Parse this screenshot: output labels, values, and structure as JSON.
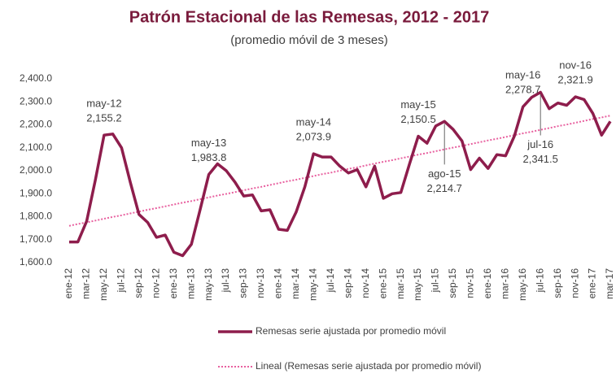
{
  "chart_data": {
    "type": "line",
    "title": "Patrón Estacional de las Remesas, 2012 - 2017",
    "subtitle": "(promedio  móvil de 3 meses)",
    "categories": [
      "ene-12",
      null,
      "mar-12",
      null,
      "may-12",
      null,
      "jul-12",
      null,
      "sep-12",
      null,
      "nov-12",
      null,
      "ene-13",
      null,
      "mar-13",
      null,
      "may-13",
      null,
      "jul-13",
      null,
      "sep-13",
      null,
      "nov-13",
      null,
      "ene-14",
      null,
      "mar-14",
      null,
      "may-14",
      null,
      "jul-14",
      null,
      "sep-14",
      null,
      "nov-14",
      null,
      "ene-15",
      null,
      "mar-15",
      null,
      "may-15",
      null,
      "jul-15",
      null,
      "sep-15",
      null,
      "nov-15",
      null,
      "ene-16",
      null,
      "mar-16",
      null,
      "may-16",
      null,
      "jul-16",
      null,
      "sep-16",
      null,
      "nov-16",
      null,
      "ene-17",
      null,
      "mar-17"
    ],
    "series": [
      {
        "name": "Remesas serie ajustada por promedio móvil",
        "color": "#8e1d4c",
        "style": "solid",
        "values": [
          1690,
          1690,
          1780,
          1960,
          2155.2,
          2160,
          2100,
          1950,
          1810,
          1775,
          1710,
          1720,
          1645,
          1630,
          1680,
          1830,
          1983.8,
          2030,
          2000,
          1950,
          1890,
          1895,
          1825,
          1830,
          1745,
          1740,
          1820,
          1930,
          2073.9,
          2060,
          2060,
          2020,
          1990,
          2005,
          1930,
          2020,
          1880,
          1900,
          1905,
          2030,
          2150.5,
          2120,
          2195,
          2214.7,
          2180,
          2130,
          2005,
          2055,
          2010,
          2070,
          2065,
          2150,
          2278.7,
          2320,
          2341.5,
          2270,
          2295,
          2285,
          2321.9,
          2310,
          2250,
          2155,
          2215
        ],
        "value_labels": [
          null,
          null,
          null,
          null,
          "2,155.2",
          null,
          null,
          null,
          null,
          null,
          null,
          null,
          null,
          null,
          null,
          null,
          "1,983.8",
          null,
          null,
          null,
          null,
          null,
          null,
          null,
          null,
          null,
          null,
          null,
          "2,073.9",
          null,
          null,
          null,
          null,
          null,
          null,
          null,
          null,
          null,
          null,
          null,
          "2,150.5",
          null,
          null,
          "2,214.7",
          null,
          null,
          null,
          null,
          null,
          null,
          null,
          null,
          "2,278.7",
          null,
          "2,341.5",
          null,
          null,
          null,
          "2,321.9",
          null,
          null,
          null,
          null
        ],
        "annotation_dates": [
          null,
          null,
          null,
          null,
          "may-12",
          null,
          null,
          null,
          null,
          null,
          null,
          null,
          null,
          null,
          null,
          null,
          "may-13",
          null,
          null,
          null,
          null,
          null,
          null,
          null,
          null,
          null,
          null,
          null,
          "may-14",
          null,
          null,
          null,
          null,
          null,
          null,
          null,
          null,
          null,
          null,
          null,
          "may-15",
          null,
          null,
          "ago-15",
          null,
          null,
          null,
          null,
          null,
          null,
          null,
          null,
          "may-16",
          null,
          "jul-16",
          null,
          null,
          null,
          "nov-16",
          null,
          null,
          null,
          null
        ]
      },
      {
        "name": "Lineal (Remesas serie ajustada por promedio móvil)",
        "color": "#e8609f",
        "style": "dotted",
        "values": [
          1760,
          1768,
          1775,
          1783,
          1791,
          1799,
          1806,
          1814,
          1822,
          1830,
          1837,
          1845,
          1853,
          1861,
          1868,
          1876,
          1884,
          1892,
          1899,
          1907,
          1915,
          1923,
          1930,
          1938,
          1946,
          1954,
          1961,
          1969,
          1977,
          1985,
          1992,
          2000,
          2008,
          2015,
          2023,
          2031,
          2039,
          2046,
          2054,
          2062,
          2070,
          2077,
          2085,
          2093,
          2101,
          2108,
          2116,
          2124,
          2132,
          2139,
          2147,
          2155,
          2163,
          2170,
          2178,
          2186,
          2194,
          2201,
          2209,
          2217,
          2225,
          2232,
          2240
        ]
      }
    ],
    "ylim": [
      1600,
      2400
    ],
    "yticks": [
      {
        "value": 1600,
        "label": "1,600.0"
      },
      {
        "value": 1700,
        "label": "1,700.0"
      },
      {
        "value": 1800,
        "label": "1,800.0"
      },
      {
        "value": 1900,
        "label": "1,900.0"
      },
      {
        "value": 2000,
        "label": "2,000.0"
      },
      {
        "value": 2100,
        "label": "2,100.0"
      },
      {
        "value": 2200,
        "label": "2,200.0"
      },
      {
        "value": 2300,
        "label": "2,300.0"
      },
      {
        "value": 2400,
        "label": "2,400.0"
      }
    ],
    "grid": false,
    "legend": "bottom"
  }
}
